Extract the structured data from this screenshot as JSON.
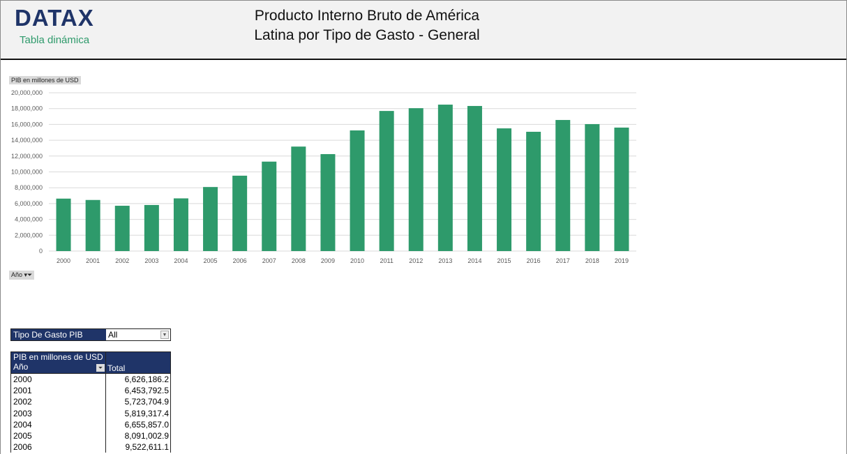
{
  "header": {
    "logo": "DATAX",
    "subtitle": "Tabla dinámica",
    "title_line1": "Producto Interno Bruto de América",
    "title_line2": "Latina por Tipo de Gasto - General"
  },
  "chart_field_buttons": {
    "value_field": "PIB en millones  de USD",
    "axis_field": "Año"
  },
  "chart_data": {
    "type": "bar",
    "color": "#2e9a6b",
    "ylim": [
      0,
      20000000
    ],
    "yticks": [
      0,
      2000000,
      4000000,
      6000000,
      8000000,
      10000000,
      12000000,
      14000000,
      16000000,
      18000000,
      20000000
    ],
    "ytick_labels": [
      "0",
      "2,000,000",
      "4,000,000",
      "6,000,000",
      "8,000,000",
      "10,000,000",
      "12,000,000",
      "14,000,000",
      "16,000,000",
      "18,000,000",
      "20,000,000"
    ],
    "grid": true,
    "categories": [
      "2000",
      "2001",
      "2002",
      "2003",
      "2004",
      "2005",
      "2006",
      "2007",
      "2008",
      "2009",
      "2010",
      "2011",
      "2012",
      "2013",
      "2014",
      "2015",
      "2016",
      "2017",
      "2018",
      "2019"
    ],
    "values": [
      6626186.2,
      6453792.5,
      5723704.9,
      5819317.4,
      6655857.0,
      8091002.9,
      9522611.1,
      11300000,
      13200000,
      12250000,
      15240000,
      17700000,
      18050000,
      18500000,
      18330000,
      15500000,
      15070000,
      16560000,
      16040000,
      15600000
    ]
  },
  "filter": {
    "label": "Tipo De Gasto PIB",
    "value": "All"
  },
  "pivot": {
    "header": "PIB en millones de USD",
    "col1": "Año",
    "col2": "Total",
    "rows": [
      {
        "year": "2000",
        "total": "6,626,186.2"
      },
      {
        "year": "2001",
        "total": "6,453,792.5"
      },
      {
        "year": "2002",
        "total": "5,723,704.9"
      },
      {
        "year": "2003",
        "total": "5,819,317.4"
      },
      {
        "year": "2004",
        "total": "6,655,857.0"
      },
      {
        "year": "2005",
        "total": "8,091,002.9"
      },
      {
        "year": "2006",
        "total": "9,522,611.1"
      }
    ]
  }
}
